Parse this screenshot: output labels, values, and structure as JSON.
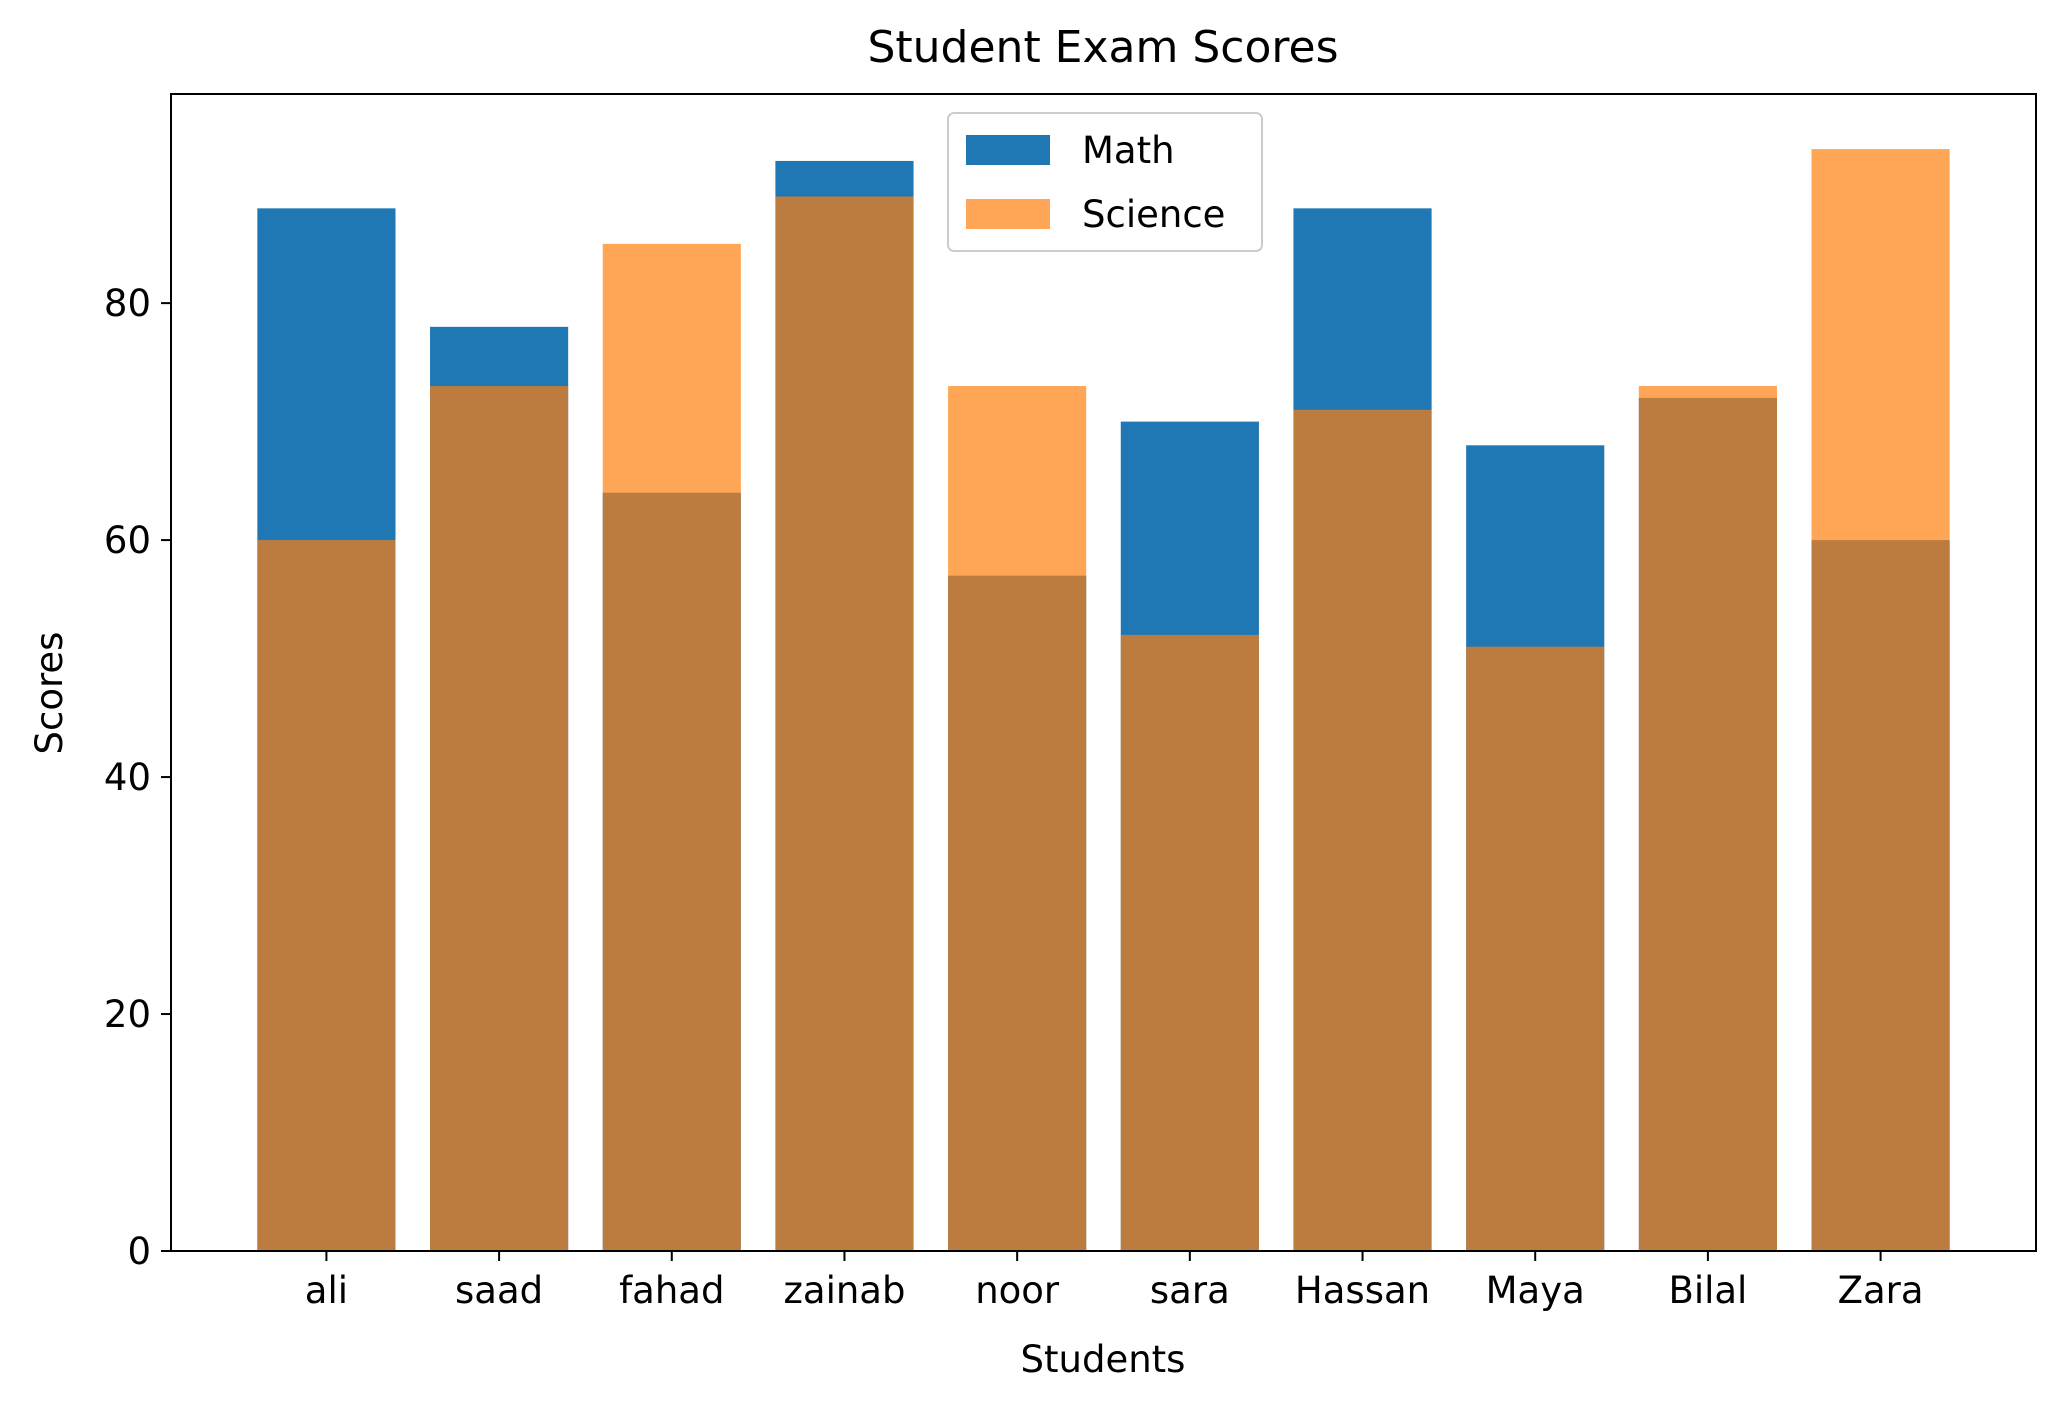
{
  "chart_data": {
    "type": "bar",
    "title": "Student Exam Scores",
    "xlabel": "Students",
    "ylabel": "Scores",
    "categories": [
      "ali",
      "saad",
      "fahad",
      "zainab",
      "noor",
      "sara",
      "Hassan",
      "Maya",
      "Bilal",
      "Zara"
    ],
    "series": [
      {
        "name": "Math",
        "color": "#1f77b4",
        "opacity": 1.0,
        "values": [
          88,
          78,
          64,
          92,
          57,
          70,
          88,
          68,
          72,
          60
        ]
      },
      {
        "name": "Science",
        "color": "#ff7f0e",
        "opacity": 0.7,
        "values": [
          60,
          73,
          85,
          89,
          73,
          52,
          71,
          51,
          73,
          93
        ]
      }
    ],
    "ylim": [
      0,
      97.65
    ],
    "yticks": [
      0,
      20,
      40,
      60,
      80
    ],
    "overlay": true,
    "grid": false,
    "legend_position": "top-center"
  }
}
